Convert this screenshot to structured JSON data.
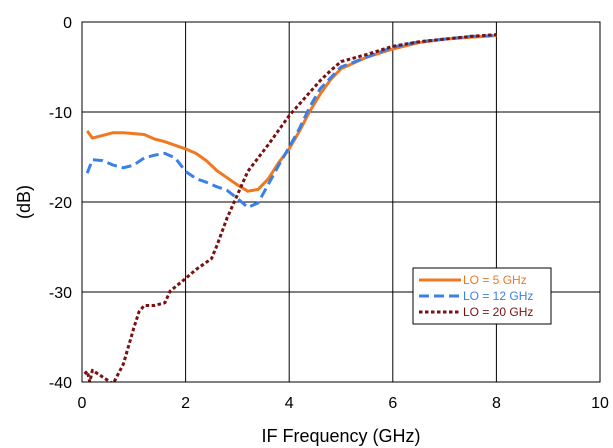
{
  "chart_data": {
    "type": "line",
    "title": "",
    "xlabel": "IF Frequency (GHz)",
    "ylabel": "(dB)",
    "xlim": [
      0,
      10
    ],
    "ylim": [
      -40,
      0
    ],
    "xticks": [
      0,
      2,
      4,
      6,
      8,
      10
    ],
    "yticks": [
      0,
      -10,
      -20,
      -30,
      -40
    ],
    "grid": true,
    "legend_position": "lower-right",
    "series": [
      {
        "name": "LO = 5 GHz",
        "color": "#f07820",
        "dash": "solid",
        "x": [
          0.1,
          0.2,
          0.4,
          0.6,
          0.8,
          1.0,
          1.2,
          1.4,
          1.6,
          1.8,
          2.0,
          2.2,
          2.4,
          2.6,
          2.8,
          3.0,
          3.2,
          3.4,
          3.6,
          3.8,
          4.0,
          4.2,
          4.4,
          4.6,
          4.8,
          5.0,
          5.5,
          6.0,
          6.5,
          7.0,
          7.5,
          8.0
        ],
        "y": [
          -12.1,
          -12.9,
          -12.6,
          -12.3,
          -12.3,
          -12.4,
          -12.5,
          -13.0,
          -13.3,
          -13.7,
          -14.1,
          -14.6,
          -15.4,
          -16.5,
          -17.3,
          -18.1,
          -18.8,
          -18.6,
          -17.4,
          -15.6,
          -14.1,
          -12.1,
          -9.9,
          -8.0,
          -6.4,
          -5.2,
          -3.9,
          -3.0,
          -2.3,
          -1.9,
          -1.7,
          -1.5
        ]
      },
      {
        "name": "LO = 12 GHz",
        "color": "#3a80e8",
        "dash": "dashed",
        "x": [
          0.1,
          0.2,
          0.4,
          0.6,
          0.8,
          1.0,
          1.2,
          1.4,
          1.6,
          1.8,
          2.0,
          2.2,
          2.4,
          2.6,
          2.8,
          3.0,
          3.2,
          3.4,
          3.6,
          3.8,
          4.0,
          4.2,
          4.4,
          4.6,
          4.8,
          5.0,
          5.5,
          6.0,
          6.5,
          7.0,
          7.5,
          8.0
        ],
        "y": [
          -16.8,
          -15.3,
          -15.4,
          -15.9,
          -16.2,
          -15.9,
          -15.1,
          -14.8,
          -14.6,
          -15.1,
          -16.6,
          -17.4,
          -17.8,
          -18.3,
          -18.7,
          -19.6,
          -20.6,
          -20.1,
          -18.0,
          -15.9,
          -13.9,
          -11.8,
          -9.4,
          -7.4,
          -6.2,
          -5.0,
          -3.9,
          -2.8,
          -2.2,
          -1.9,
          -1.6,
          -1.5
        ]
      },
      {
        "name": "LO = 20 GHz",
        "color": "#7a1010",
        "dash": "dotted",
        "x": [
          0.05,
          0.1,
          0.15,
          0.2,
          0.6,
          0.8,
          1.0,
          1.1,
          1.2,
          1.4,
          1.6,
          1.7,
          2.0,
          2.2,
          2.5,
          2.6,
          2.8,
          3.0,
          3.2,
          3.4,
          3.6,
          3.8,
          4.0,
          4.2,
          4.4,
          4.6,
          4.8,
          5.0,
          5.5,
          6.0,
          6.5,
          7.0,
          7.5,
          8.0
        ],
        "y": [
          -39.1,
          -38.8,
          -40.0,
          -38.7,
          -40.2,
          -38.0,
          -34.0,
          -32.2,
          -31.5,
          -31.5,
          -31.2,
          -29.9,
          -28.5,
          -27.5,
          -26.3,
          -24.9,
          -21.8,
          -19.2,
          -16.6,
          -15.1,
          -13.6,
          -12.0,
          -10.4,
          -9.1,
          -7.8,
          -6.5,
          -5.4,
          -4.4,
          -3.6,
          -2.7,
          -2.2,
          -1.9,
          -1.6,
          -1.4
        ]
      }
    ]
  }
}
